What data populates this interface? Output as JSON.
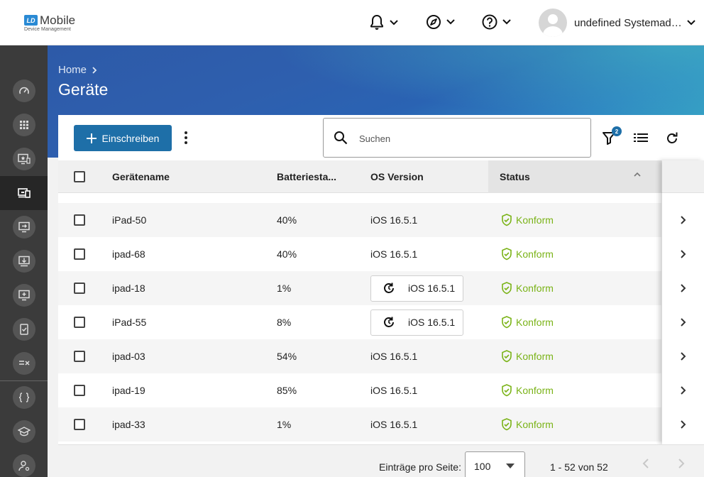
{
  "app": {
    "logo_badge": "LD",
    "logo_name": "Mobile",
    "logo_sub": "Device Management"
  },
  "topbar": {
    "user_name": "undefined Systemadministrator"
  },
  "sidebar": {
    "items": [
      {
        "icon": "dashboard-icon"
      },
      {
        "icon": "apps-grid-icon"
      },
      {
        "icon": "device-star-icon"
      },
      {
        "icon": "devices-icon",
        "active": true
      },
      {
        "icon": "device-forward-icon"
      },
      {
        "icon": "device-download-icon"
      },
      {
        "icon": "device-add-icon"
      },
      {
        "icon": "device-check-icon"
      },
      {
        "icon": "rules-icon"
      },
      {
        "icon": "code-braces-icon"
      },
      {
        "icon": "school-icon"
      },
      {
        "icon": "user-settings-icon"
      }
    ]
  },
  "header": {
    "breadcrumb_home": "Home",
    "title": "Geräte"
  },
  "toolbar": {
    "enroll_label": "Einschreiben",
    "search_placeholder": "Suchen",
    "filter_count": "2"
  },
  "table": {
    "columns": {
      "name": "Gerätename",
      "battery": "Batteriesta...",
      "os": "OS Version",
      "status": "Status"
    },
    "rows": [
      {
        "name": "iPad-50",
        "battery": "40%",
        "os": "iOS 16.5.1",
        "os_update_pending": false,
        "status": "Konform"
      },
      {
        "name": "ipad-68",
        "battery": "40%",
        "os": "iOS 16.5.1",
        "os_update_pending": false,
        "status": "Konform"
      },
      {
        "name": "ipad-18",
        "battery": "1%",
        "os": "iOS 16.5.1",
        "os_update_pending": true,
        "status": "Konform"
      },
      {
        "name": "iPad-55",
        "battery": "8%",
        "os": "iOS 16.5.1",
        "os_update_pending": true,
        "status": "Konform"
      },
      {
        "name": "ipad-03",
        "battery": "54%",
        "os": "iOS 16.5.1",
        "os_update_pending": false,
        "status": "Konform"
      },
      {
        "name": "ipad-19",
        "battery": "85%",
        "os": "iOS 16.5.1",
        "os_update_pending": false,
        "status": "Konform"
      },
      {
        "name": "ipad-33",
        "battery": "1%",
        "os": "iOS 16.5.1",
        "os_update_pending": false,
        "status": "Konform"
      }
    ]
  },
  "footer": {
    "per_page_label": "Einträge pro Seite:",
    "per_page_value": "100",
    "range": "1 - 52 von 52"
  },
  "colors": {
    "accent": "#1e6fa8",
    "status_ok": "#7ab317",
    "sidebar_bg": "#3b3b3b"
  }
}
